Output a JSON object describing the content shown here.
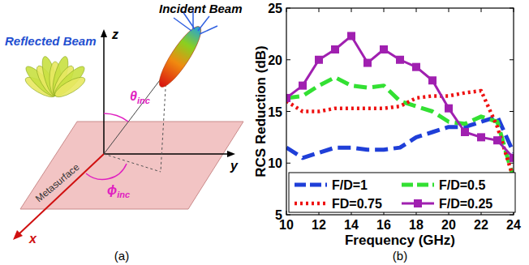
{
  "chart_data": {
    "type": "line",
    "xlabel": "Frequency (GHz)",
    "ylabel": "RCS Reduction (dB)",
    "x": [
      10,
      11,
      12,
      13,
      14,
      15,
      16,
      17,
      18,
      19,
      20,
      21,
      22,
      23,
      24
    ],
    "series": [
      {
        "name": "F/D=1",
        "color": "#1f3fd8",
        "line_style": "dashed",
        "marker": "none",
        "values": [
          11.5,
          10.5,
          11,
          11.5,
          11.5,
          11.3,
          11.3,
          11.5,
          12.5,
          13,
          13.5,
          13.5,
          14,
          14.5,
          11
        ]
      },
      {
        "name": "F/D=0.5",
        "color": "#33e033",
        "line_style": "dashed",
        "marker": "none",
        "values": [
          16.3,
          16.5,
          17.5,
          18.3,
          17.5,
          17.3,
          17.5,
          16,
          15.5,
          15,
          14,
          13.8,
          14.5,
          14,
          8.5
        ]
      },
      {
        "name": "FD=0.75",
        "color": "#ee1111",
        "line_style": "dotted",
        "marker": "none",
        "values": [
          16,
          15,
          15,
          15.3,
          15.3,
          15.3,
          15.3,
          15.5,
          16.3,
          16.5,
          16.5,
          16.8,
          17,
          13.5,
          8.5
        ]
      },
      {
        "name": "F/D=0.25",
        "color": "#a020b0",
        "line_style": "solid",
        "marker": "square",
        "values": [
          16.3,
          17.5,
          20,
          21,
          22.3,
          19.7,
          21,
          20,
          19.3,
          18,
          15.3,
          13,
          12.5,
          12.2,
          10.5
        ]
      }
    ],
    "xlim": [
      10,
      24
    ],
    "xticks": [
      10,
      12,
      14,
      16,
      18,
      20,
      22,
      24
    ],
    "ylim": [
      5,
      25
    ],
    "yticks": [
      5,
      10,
      15,
      20,
      25
    ],
    "grid": false,
    "legend": "bottom"
  },
  "diagram": {
    "incident_beam": "Incident Beam",
    "reflected_beam": "Reflected Beam",
    "metasurface": "Metasurface",
    "axis_x": "x",
    "axis_y": "y",
    "axis_z": "z",
    "theta": {
      "symbol": "θ",
      "subscript": "inc"
    },
    "phi": {
      "symbol": "ϕ",
      "subscript": "inc"
    }
  },
  "panel_labels": [
    "(a)",
    "(b)"
  ]
}
